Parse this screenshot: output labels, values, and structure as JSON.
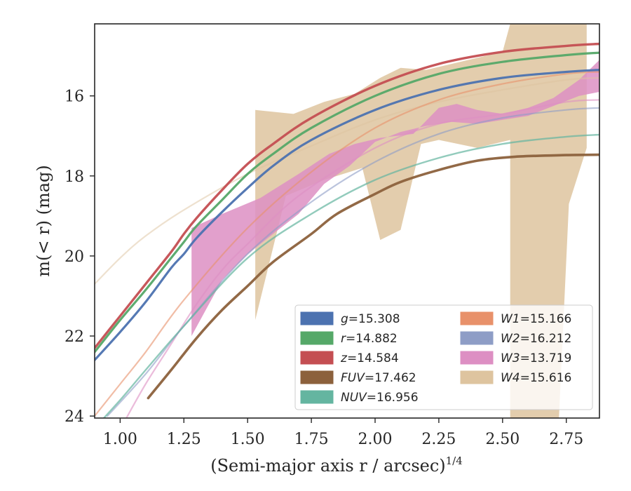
{
  "chart_data": {
    "type": "line",
    "xlabel_main": "(Semi-major axis r / arcsec)",
    "xlabel_sup": "1/4",
    "ylabel": "m(< r) (mag)",
    "xlim": [
      0.9,
      2.88
    ],
    "ylim": [
      24.05,
      14.2
    ],
    "y_inverted": true,
    "xticks": [
      1.0,
      1.25,
      1.5,
      1.75,
      2.0,
      2.25,
      2.5,
      2.75
    ],
    "xtick_labels": [
      "1.00",
      "1.25",
      "1.50",
      "1.75",
      "2.00",
      "2.25",
      "2.50",
      "2.75"
    ],
    "yticks": [
      16,
      18,
      20,
      22,
      24
    ],
    "ytick_labels": [
      "16",
      "18",
      "20",
      "22",
      "24"
    ],
    "grid": false,
    "legend_placement": "lower-right",
    "series": [
      {
        "name": "g = 15.308",
        "color": "#4c72b0",
        "legend_col": 0,
        "data": [
          [
            0.9,
            22.6
          ],
          [
            1.0,
            21.9
          ],
          [
            1.1,
            21.15
          ],
          [
            1.2,
            20.3
          ],
          [
            1.25,
            19.95
          ],
          [
            1.3,
            19.55
          ],
          [
            1.4,
            18.9
          ],
          [
            1.5,
            18.3
          ],
          [
            1.6,
            17.75
          ],
          [
            1.75,
            17.1
          ],
          [
            2.0,
            16.35
          ],
          [
            2.25,
            15.85
          ],
          [
            2.5,
            15.55
          ],
          [
            2.75,
            15.4
          ],
          [
            2.88,
            15.35
          ]
        ]
      },
      {
        "name": "r = 14.882",
        "color": "#55a868",
        "legend_col": 0,
        "data": [
          [
            0.9,
            22.4
          ],
          [
            1.0,
            21.6
          ],
          [
            1.1,
            20.85
          ],
          [
            1.2,
            20.05
          ],
          [
            1.25,
            19.65
          ],
          [
            1.3,
            19.25
          ],
          [
            1.4,
            18.6
          ],
          [
            1.5,
            17.95
          ],
          [
            1.6,
            17.45
          ],
          [
            1.75,
            16.8
          ],
          [
            2.0,
            16.0
          ],
          [
            2.25,
            15.45
          ],
          [
            2.5,
            15.15
          ],
          [
            2.75,
            14.98
          ],
          [
            2.88,
            14.92
          ]
        ]
      },
      {
        "name": "z = 14.584",
        "color": "#c44e52",
        "legend_col": 0,
        "data": [
          [
            0.9,
            22.3
          ],
          [
            1.0,
            21.5
          ],
          [
            1.1,
            20.7
          ],
          [
            1.2,
            19.9
          ],
          [
            1.25,
            19.45
          ],
          [
            1.3,
            19.05
          ],
          [
            1.4,
            18.35
          ],
          [
            1.5,
            17.7
          ],
          [
            1.6,
            17.2
          ],
          [
            1.75,
            16.55
          ],
          [
            2.0,
            15.75
          ],
          [
            2.25,
            15.2
          ],
          [
            2.5,
            14.9
          ],
          [
            2.75,
            14.75
          ],
          [
            2.88,
            14.7
          ]
        ]
      },
      {
        "name": "FUV = 17.462",
        "color": "#8c613c",
        "legend_col": 0,
        "data": [
          [
            1.11,
            23.55
          ],
          [
            1.2,
            22.85
          ],
          [
            1.3,
            22.05
          ],
          [
            1.4,
            21.35
          ],
          [
            1.5,
            20.75
          ],
          [
            1.6,
            20.15
          ],
          [
            1.75,
            19.45
          ],
          [
            1.85,
            18.95
          ],
          [
            2.0,
            18.45
          ],
          [
            2.1,
            18.15
          ],
          [
            2.25,
            17.85
          ],
          [
            2.4,
            17.62
          ],
          [
            2.55,
            17.52
          ],
          [
            2.75,
            17.48
          ],
          [
            2.88,
            17.47
          ]
        ]
      },
      {
        "name": "NUV = 16.956",
        "color": "#64b5a0",
        "legend_col": 0,
        "data": [
          [
            0.9,
            24.3
          ],
          [
            1.0,
            23.6
          ],
          [
            1.1,
            22.85
          ],
          [
            1.25,
            21.75
          ],
          [
            1.5,
            20.05
          ],
          [
            1.75,
            18.95
          ],
          [
            2.0,
            18.1
          ],
          [
            2.25,
            17.55
          ],
          [
            2.5,
            17.2
          ],
          [
            2.75,
            17.02
          ],
          [
            2.88,
            16.97
          ]
        ]
      },
      {
        "name": "W1 = 15.166",
        "color": "#e8916a",
        "legend_col": 1,
        "data": [
          [
            0.9,
            24.0
          ],
          [
            1.0,
            23.2
          ],
          [
            1.1,
            22.4
          ],
          [
            1.25,
            21.1
          ],
          [
            1.5,
            19.3
          ],
          [
            1.75,
            17.9
          ],
          [
            2.0,
            16.8
          ],
          [
            2.25,
            16.1
          ],
          [
            2.5,
            15.7
          ],
          [
            2.75,
            15.45
          ],
          [
            2.88,
            15.4
          ]
        ]
      },
      {
        "name": "W2 = 16.212",
        "color": "#8e9dc6",
        "legend_col": 1,
        "data": [
          [
            0.95,
            24.0
          ],
          [
            1.1,
            22.95
          ],
          [
            1.25,
            21.75
          ],
          [
            1.5,
            19.95
          ],
          [
            1.75,
            18.65
          ],
          [
            2.0,
            17.65
          ],
          [
            2.25,
            16.95
          ],
          [
            2.5,
            16.55
          ],
          [
            2.75,
            16.35
          ],
          [
            2.88,
            16.3
          ]
        ]
      },
      {
        "name": "W3 = 13.719",
        "color": "#dd8fc3",
        "legend_col": 1,
        "band": true,
        "band_upper": [
          [
            1.28,
            19.3
          ],
          [
            1.4,
            18.95
          ],
          [
            1.55,
            18.55
          ],
          [
            1.7,
            17.95
          ],
          [
            1.82,
            17.45
          ],
          [
            1.92,
            17.2
          ],
          [
            2.02,
            17.05
          ],
          [
            2.15,
            16.95
          ],
          [
            2.25,
            16.3
          ],
          [
            2.32,
            16.2
          ],
          [
            2.4,
            16.35
          ],
          [
            2.5,
            16.45
          ],
          [
            2.6,
            16.3
          ],
          [
            2.7,
            16.05
          ],
          [
            2.8,
            15.6
          ],
          [
            2.88,
            15.1
          ]
        ],
        "band_lower": [
          [
            2.88,
            15.9
          ],
          [
            2.8,
            16.0
          ],
          [
            2.7,
            16.25
          ],
          [
            2.6,
            16.5
          ],
          [
            2.5,
            16.6
          ],
          [
            2.4,
            16.7
          ],
          [
            2.3,
            16.65
          ],
          [
            2.2,
            16.75
          ],
          [
            2.1,
            16.9
          ],
          [
            2.0,
            17.15
          ],
          [
            1.9,
            17.75
          ],
          [
            1.8,
            18.2
          ],
          [
            1.7,
            18.95
          ],
          [
            1.62,
            19.35
          ],
          [
            1.5,
            19.95
          ],
          [
            1.4,
            20.6
          ],
          [
            1.28,
            22.0
          ]
        ],
        "data": [
          [
            1.02,
            24.1
          ],
          [
            1.1,
            23.2
          ],
          [
            1.2,
            22.2
          ],
          [
            1.3,
            21.2
          ],
          [
            1.4,
            20.35
          ],
          [
            1.5,
            19.7
          ],
          [
            1.7,
            18.5
          ],
          [
            2.0,
            17.3
          ],
          [
            2.25,
            16.7
          ],
          [
            2.5,
            16.45
          ],
          [
            2.75,
            16.15
          ],
          [
            2.88,
            16.1
          ]
        ]
      },
      {
        "name": "W4 = 15.616",
        "color": "#dec49f",
        "legend_col": 1,
        "band": true,
        "band_upper": [
          [
            1.53,
            16.35
          ],
          [
            1.68,
            16.45
          ],
          [
            1.8,
            16.15
          ],
          [
            1.92,
            15.95
          ],
          [
            2.02,
            15.55
          ],
          [
            2.1,
            15.3
          ],
          [
            2.2,
            15.35
          ],
          [
            2.3,
            15.2
          ],
          [
            2.4,
            15.05
          ],
          [
            2.5,
            14.9
          ],
          [
            2.53,
            14.2
          ],
          [
            2.83,
            14.2
          ]
        ],
        "band_lower": [
          [
            2.83,
            17.3
          ],
          [
            2.76,
            18.7
          ],
          [
            2.72,
            24.2
          ],
          [
            2.53,
            24.2
          ],
          [
            2.53,
            17.1
          ],
          [
            2.4,
            17.3
          ],
          [
            2.25,
            17.1
          ],
          [
            2.18,
            17.2
          ],
          [
            2.1,
            19.35
          ],
          [
            2.02,
            19.6
          ],
          [
            1.95,
            17.8
          ],
          [
            1.8,
            18.1
          ],
          [
            1.65,
            18.5
          ],
          [
            1.53,
            21.6
          ]
        ],
        "data": [
          [
            0.9,
            20.7
          ],
          [
            1.0,
            20.05
          ],
          [
            1.1,
            19.5
          ],
          [
            1.25,
            18.85
          ],
          [
            1.5,
            17.95
          ],
          [
            1.75,
            17.25
          ],
          [
            2.0,
            16.6
          ],
          [
            2.25,
            16.15
          ],
          [
            2.5,
            15.85
          ],
          [
            2.75,
            15.6
          ],
          [
            2.88,
            15.55
          ]
        ]
      }
    ]
  }
}
